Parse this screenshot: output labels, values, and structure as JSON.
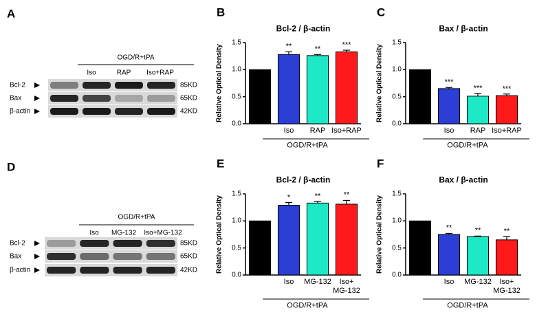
{
  "blots": [
    {
      "panel": "A",
      "group_label": "OGD/R+tPA",
      "lanes": [
        "Iso",
        "RAP",
        "Iso+RAP"
      ],
      "rows": [
        {
          "label": "Bcl-2",
          "size": "85KD"
        },
        {
          "label": "Bax",
          "size": "65KD"
        },
        {
          "label": "β-actin",
          "size": "42KD"
        }
      ]
    },
    {
      "panel": "D",
      "group_label": "OGD/R+tPA",
      "lanes": [
        "Iso",
        "MG-132",
        "Iso+MG-132"
      ],
      "rows": [
        {
          "label": "Bcl-2",
          "size": "85KD"
        },
        {
          "label": "Bax",
          "size": "65KD"
        },
        {
          "label": "β-actin",
          "size": "42KD"
        }
      ]
    }
  ],
  "chart_data": [
    {
      "type": "bar",
      "panel": "B",
      "title": "Bcl-2 / β-actin",
      "y_label": "Relative Optical Density",
      "categories": [
        null,
        "Iso",
        "RAP",
        "Iso+RAP"
      ],
      "values": [
        1.0,
        1.28,
        1.26,
        1.33
      ],
      "errors": [
        0,
        0.05,
        0.02,
        0.03
      ],
      "annotations": [
        null,
        "**",
        "**",
        "***"
      ],
      "colors": [
        "#000000",
        "#2b3fd6",
        "#1de9c6",
        "#fe1a1a"
      ],
      "group_label": "OGD/R+tPA",
      "ylim": [
        0,
        1.5
      ],
      "yticks": [
        {
          "value": 0,
          "label": "0.0"
        },
        0.5,
        {
          "value": 1,
          "label": "1.0"
        },
        1.5
      ]
    },
    {
      "type": "bar",
      "panel": "C",
      "title": "Bax / β-actin",
      "y_label": "Relative Optical Density",
      "categories": [
        null,
        "Iso",
        "RAP",
        "Iso+RAP"
      ],
      "values": [
        1.0,
        0.65,
        0.51,
        0.52
      ],
      "errors": [
        0,
        0.02,
        0.05,
        0.03
      ],
      "annotations": [
        null,
        "***",
        "***",
        "***"
      ],
      "colors": [
        "#000000",
        "#2b3fd6",
        "#1de9c6",
        "#fe1a1a"
      ],
      "group_label": "OGD/R+tPA",
      "ylim": [
        0,
        1.5
      ],
      "yticks": [
        {
          "value": 0,
          "label": "0.0"
        },
        0.5,
        {
          "value": 1,
          "label": "1.0"
        },
        1.5
      ]
    },
    {
      "type": "bar",
      "panel": "E",
      "title": "Bcl-2 / β-actin",
      "y_label": "Relative Optical Density",
      "categories": [
        null,
        "Iso",
        "MG-132",
        "Iso+\nMG-132"
      ],
      "values": [
        1.0,
        1.29,
        1.33,
        1.31
      ],
      "errors": [
        0,
        0.05,
        0.03,
        0.07
      ],
      "annotations": [
        null,
        "*",
        "**",
        "**"
      ],
      "colors": [
        "#000000",
        "#2b3fd6",
        "#1de9c6",
        "#fe1a1a"
      ],
      "group_label": "OGD/R+tPA",
      "ylim": [
        0,
        1.5
      ],
      "yticks": [
        {
          "value": 0,
          "label": "0.0"
        },
        0.5,
        {
          "value": 1,
          "label": "1.0"
        },
        1.5
      ]
    },
    {
      "type": "bar",
      "panel": "F",
      "title": "Bax / β-actin",
      "y_label": "Relative Optical Density",
      "categories": [
        null,
        "Iso",
        "MG-132",
        "Iso+\nMG-132"
      ],
      "values": [
        1.0,
        0.75,
        0.71,
        0.65
      ],
      "errors": [
        0,
        0.02,
        0.01,
        0.06
      ],
      "annotations": [
        null,
        "**",
        "**",
        "**"
      ],
      "colors": [
        "#000000",
        "#2b3fd6",
        "#1de9c6",
        "#fe1a1a"
      ],
      "group_label": "OGD/R+tPA",
      "ylim": [
        0,
        1.5
      ],
      "yticks": [
        {
          "value": 0,
          "label": "0.0"
        },
        0.5,
        {
          "value": 1,
          "label": "1.0"
        },
        1.5
      ]
    }
  ]
}
